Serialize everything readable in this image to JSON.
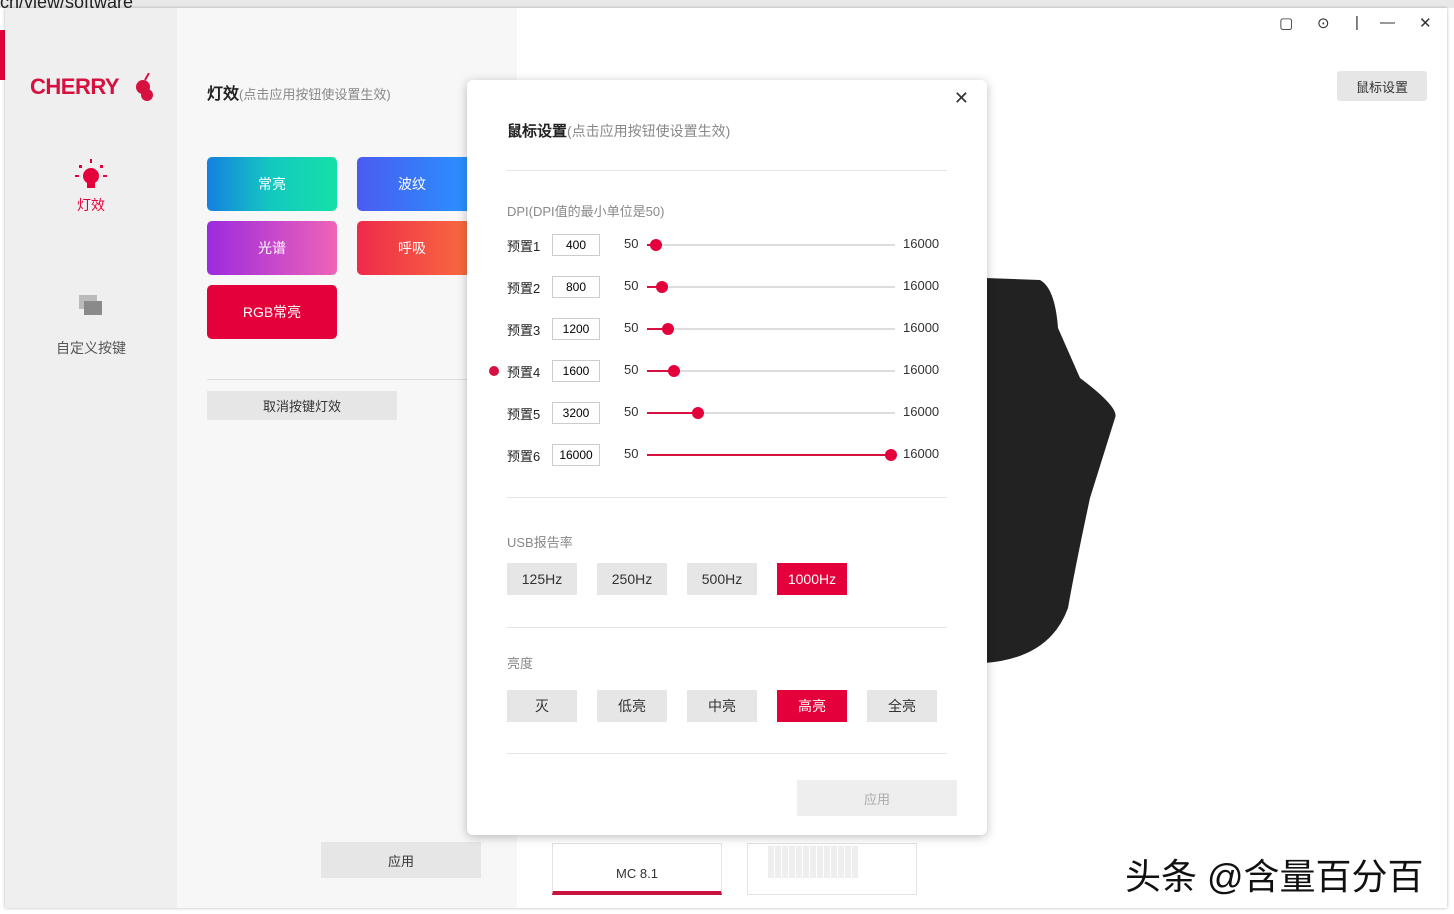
{
  "browser": {
    "url_fragment": "cn/view/software"
  },
  "brand": {
    "logo": "CHERRY",
    "accent": "#e4003a"
  },
  "sidebar": {
    "items": [
      {
        "label": "灯效",
        "icon": "bulb-icon",
        "active": true
      },
      {
        "label": "自定义按键",
        "icon": "layers-icon",
        "active": false
      }
    ]
  },
  "panel": {
    "title": "灯效",
    "hint": "(点击应用按钮使设置生效)",
    "effects": [
      "常亮",
      "波纹",
      "光谱",
      "呼吸",
      "RGB常亮"
    ],
    "cancel": "取消按键灯效",
    "apply": "应用"
  },
  "header": {
    "mouse_settings": "鼠标设置"
  },
  "modal": {
    "title": "鼠标设置",
    "hint": "(点击应用按钮使设置生效)",
    "dpi_label": "DPI(DPI值的最小单位是50)",
    "dpi_min": "50",
    "dpi_max": "16000",
    "presets": [
      {
        "name": "预置1",
        "value": "400"
      },
      {
        "name": "预置2",
        "value": "800"
      },
      {
        "name": "预置3",
        "value": "1200"
      },
      {
        "name": "预置4",
        "value": "1600",
        "active": true
      },
      {
        "name": "预置5",
        "value": "3200"
      },
      {
        "name": "预置6",
        "value": "16000"
      }
    ],
    "usb_label": "USB报告率",
    "usb": [
      "125Hz",
      "250Hz",
      "500Hz",
      "1000Hz"
    ],
    "usb_selected": "1000Hz",
    "bright_label": "亮度",
    "bright": [
      "灭",
      "低亮",
      "中亮",
      "高亮",
      "全亮"
    ],
    "bright_selected": "高亮",
    "apply": "应用"
  },
  "devices": [
    {
      "name": "MC 8.1",
      "active": true
    },
    {
      "name": ""
    }
  ],
  "watermark": "头条 @含量百分百"
}
